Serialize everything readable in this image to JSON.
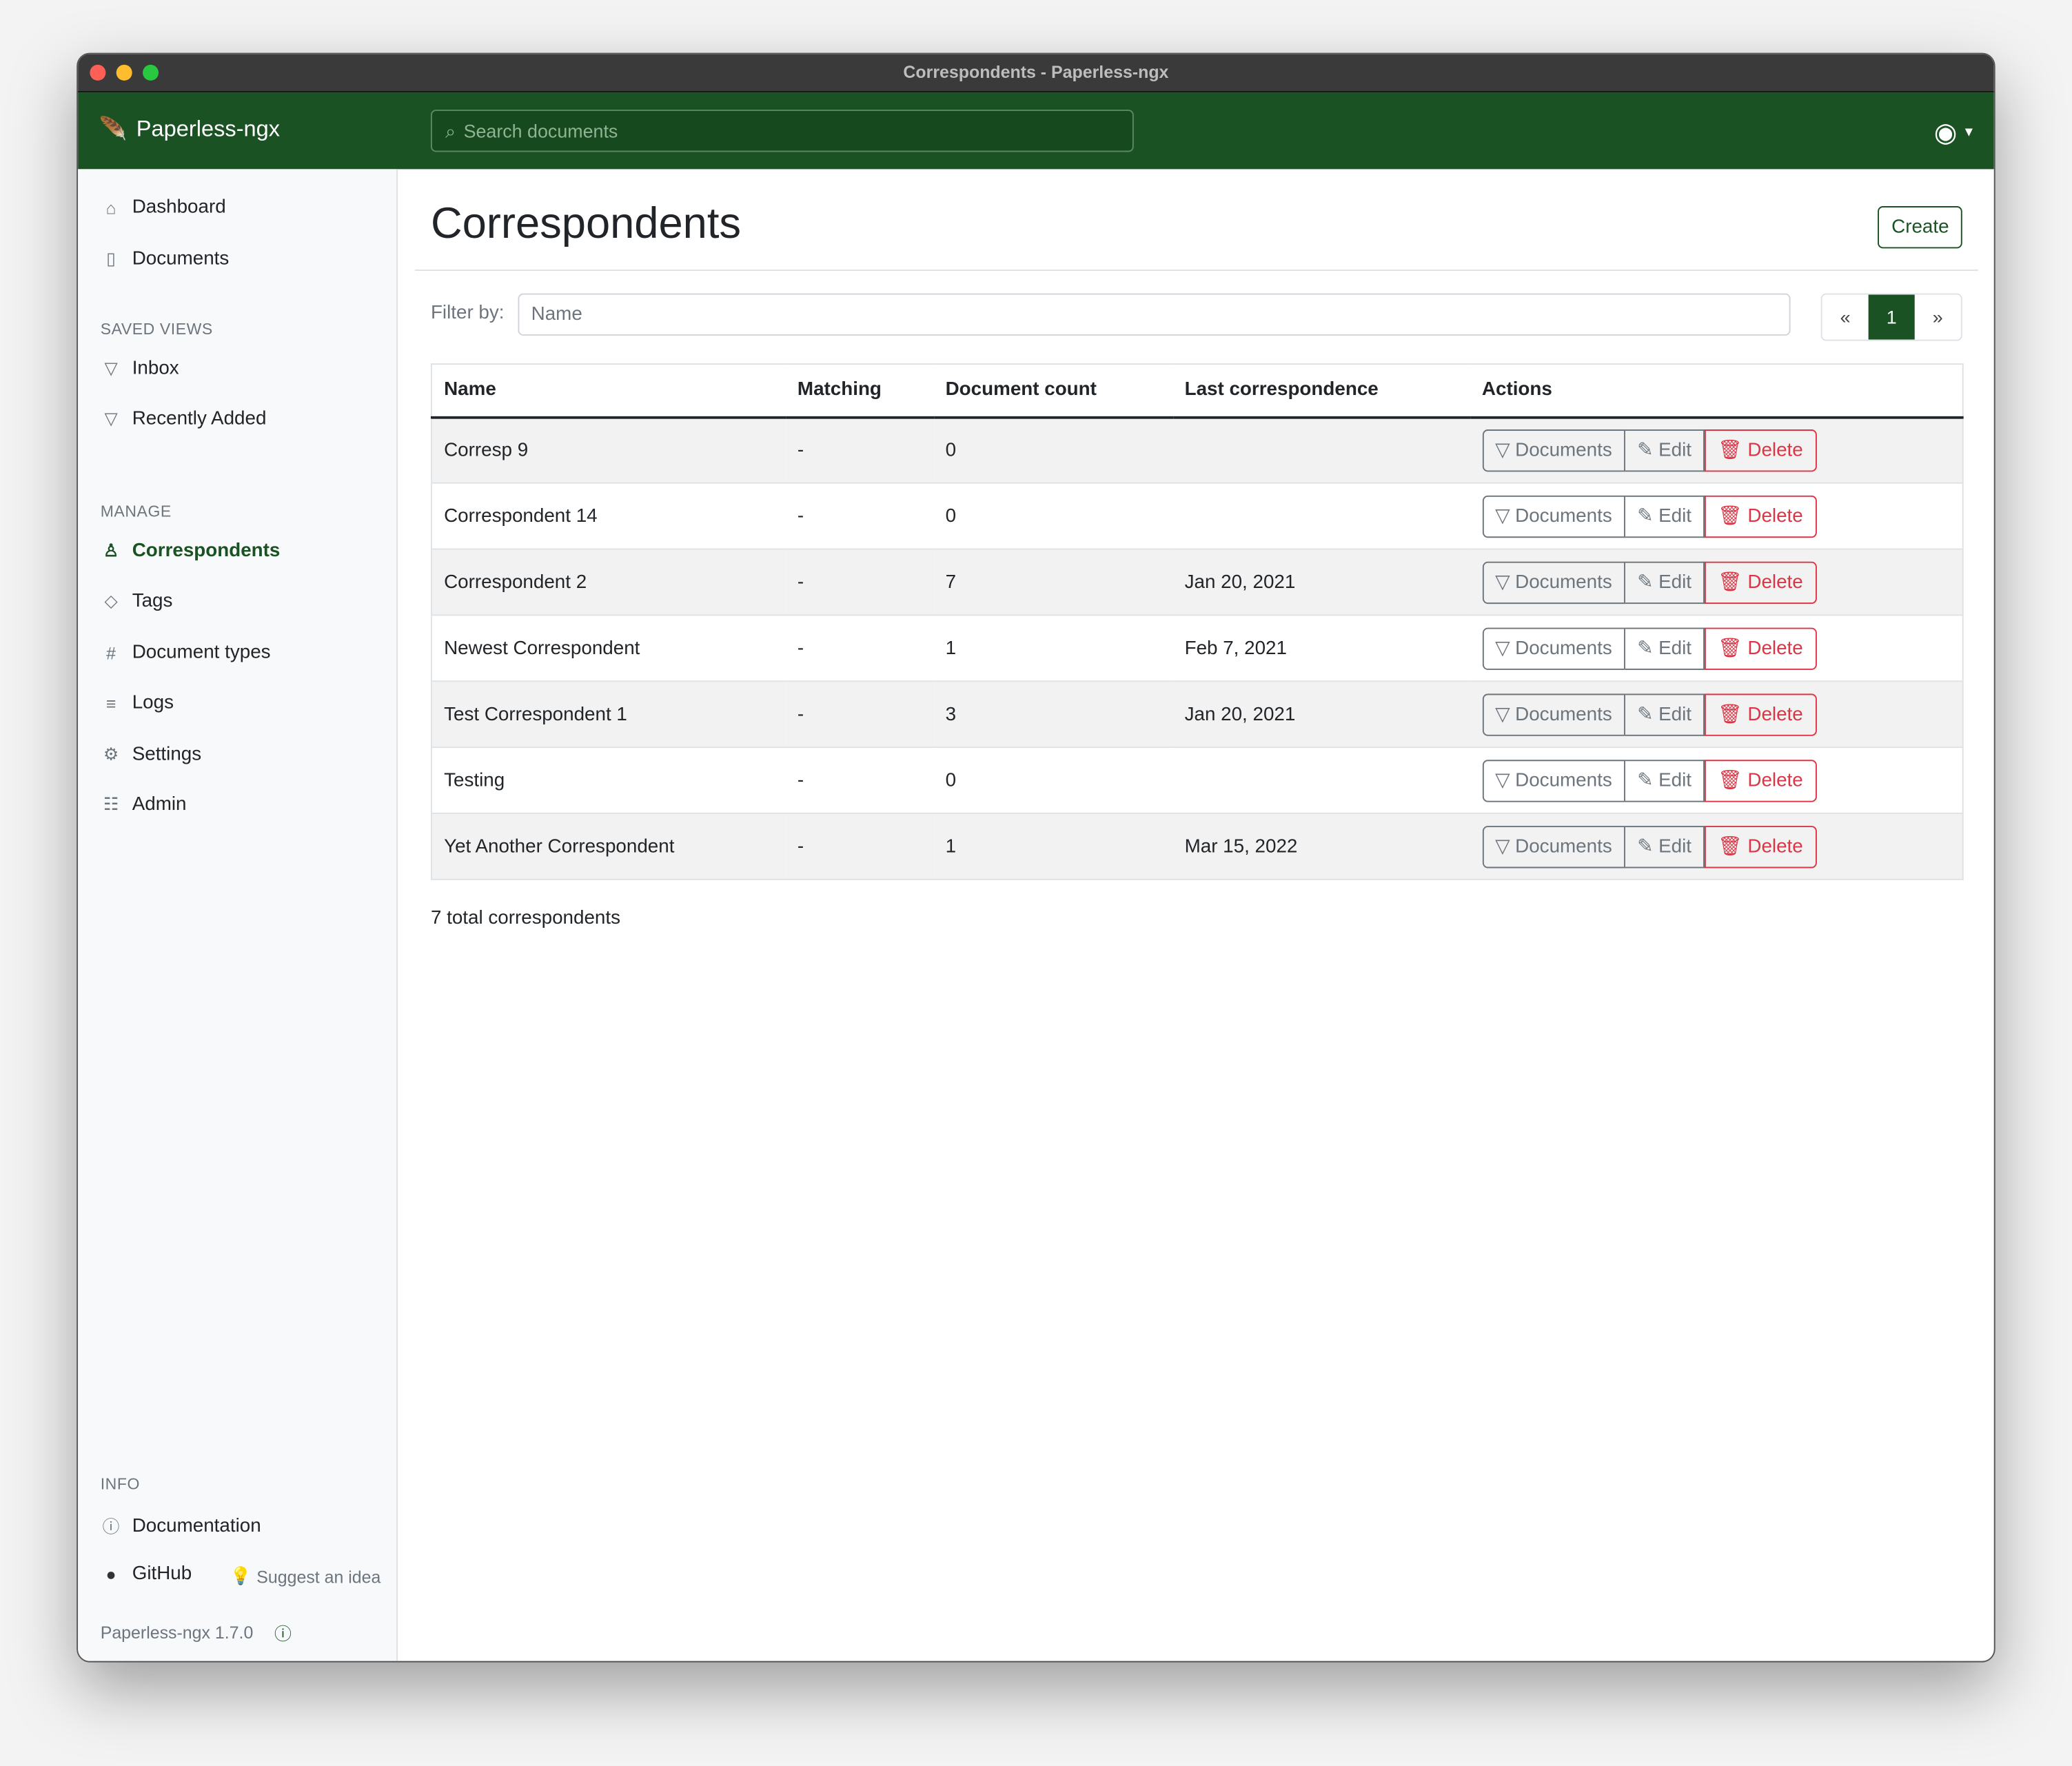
{
  "window": {
    "title": "Correspondents - Paperless-ngx"
  },
  "navbar": {
    "brand": "Paperless-ngx",
    "search_placeholder": "Search documents"
  },
  "sidebar": {
    "items": [
      {
        "label": "Dashboard",
        "icon": "house-icon"
      },
      {
        "label": "Documents",
        "icon": "files-icon"
      }
    ],
    "saved_views_header": "SAVED VIEWS",
    "saved_views": [
      {
        "label": "Inbox",
        "icon": "funnel-icon"
      },
      {
        "label": "Recently Added",
        "icon": "funnel-icon"
      }
    ],
    "manage_header": "MANAGE",
    "manage": [
      {
        "label": "Correspondents",
        "icon": "person-icon",
        "active": true
      },
      {
        "label": "Tags",
        "icon": "tag-icon"
      },
      {
        "label": "Document types",
        "icon": "hash-icon"
      },
      {
        "label": "Logs",
        "icon": "list-icon"
      },
      {
        "label": "Settings",
        "icon": "gear-icon"
      },
      {
        "label": "Admin",
        "icon": "toggles-icon"
      }
    ],
    "info_header": "INFO",
    "documentation": "Documentation",
    "github": "GitHub",
    "suggest": "Suggest an idea",
    "version": "Paperless-ngx 1.7.0"
  },
  "main": {
    "title": "Correspondents",
    "create_label": "Create",
    "filter_label": "Filter by:",
    "filter_placeholder": "Name",
    "pagination": {
      "prev": "«",
      "current": "1",
      "next": "»"
    },
    "columns": [
      "Name",
      "Matching",
      "Document count",
      "Last correspondence",
      "Actions"
    ],
    "rows": [
      {
        "name": "Corresp 9",
        "matching": "-",
        "count": "0",
        "last": ""
      },
      {
        "name": "Correspondent 14",
        "matching": "-",
        "count": "0",
        "last": ""
      },
      {
        "name": "Correspondent 2",
        "matching": "-",
        "count": "7",
        "last": "Jan 20, 2021"
      },
      {
        "name": "Newest Correspondent",
        "matching": "-",
        "count": "1",
        "last": "Feb 7, 2021"
      },
      {
        "name": "Test Correspondent 1",
        "matching": "-",
        "count": "3",
        "last": "Jan 20, 2021"
      },
      {
        "name": "Testing",
        "matching": "-",
        "count": "0",
        "last": ""
      },
      {
        "name": "Yet Another Correspondent",
        "matching": "-",
        "count": "1",
        "last": "Mar 15, 2022"
      }
    ],
    "actions": {
      "documents": "Documents",
      "edit": "Edit",
      "delete": "Delete"
    },
    "total": "7 total correspondents"
  },
  "colors": {
    "brand": "#1a5223",
    "danger": "#dc3545"
  }
}
